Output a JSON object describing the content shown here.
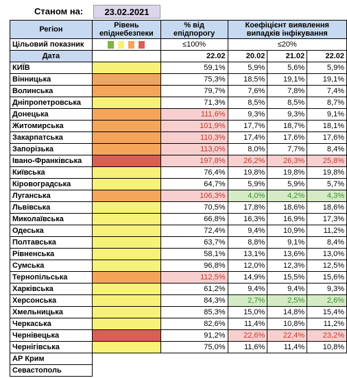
{
  "as_of_label": "Станом на:",
  "as_of_date": "23.02.2021",
  "headers": {
    "region": "Регіон",
    "risk_level": "Рівень епіднебезпеки",
    "bed_load": "% від епідпорогу",
    "detection": "Коефіцієнт виявлення випадків інфікування"
  },
  "target": {
    "label": "Цільовий показник",
    "bed_load": "≤100%",
    "detection": "≤20%",
    "swatch_colors": [
      "#7cb342",
      "#f6f277",
      "#f5a55a",
      "#d95f55"
    ]
  },
  "date_row": {
    "label": "Дата",
    "bed_load_date": "22.02",
    "dates": [
      "20.02",
      "21.02",
      "22.02"
    ]
  },
  "colors": {
    "green": "#d4ebc5",
    "yellow": "#f6f277",
    "orange": "#f5a55a",
    "red": "#d95f55",
    "pink": "#f7cfcf"
  },
  "rows": [
    {
      "region": "КИЇВ",
      "level": "y",
      "pct": "59,1%",
      "d1": "5,9%",
      "d2": "5,6%",
      "d3": "5,9%"
    },
    {
      "region": "Вінницька",
      "level": "o",
      "pct": "75,3%",
      "d1": "18,5%",
      "d2": "19,1%",
      "d3": "19,1%"
    },
    {
      "region": "Волинська",
      "level": "o",
      "pct": "79,7%",
      "d1": "7,6%",
      "d2": "7,8%",
      "d3": "7,4%"
    },
    {
      "region": "Дніпропетровська",
      "level": "y",
      "pct": "71,3%",
      "d1": "8,5%",
      "d2": "8,5%",
      "d3": "8,7%"
    },
    {
      "region": "Донецька",
      "level": "o",
      "pct": "111,6%",
      "pct_hl": "pink",
      "d1": "9,3%",
      "d2": "9,3%",
      "d3": "9,1%"
    },
    {
      "region": "Житомирська",
      "level": "o",
      "pct": "101,9%",
      "pct_hl": "pink",
      "d1": "17,7%",
      "d2": "18,7%",
      "d3": "18,1%"
    },
    {
      "region": "Закарпатська",
      "level": "o",
      "pct": "110,3%",
      "pct_hl": "pink",
      "d1": "17,4%",
      "d2": "17,6%",
      "d3": "17,6%"
    },
    {
      "region": "Запорізька",
      "level": "o",
      "pct": "113,0%",
      "pct_hl": "pink",
      "d1": "8,0%",
      "d2": "7,7%",
      "d3": "8,4%"
    },
    {
      "region": "Івано-Франківська",
      "level": "r",
      "pct": "197,8%",
      "pct_hl": "pink",
      "d1": "26,2%",
      "d2": "26,3%",
      "d3": "25,8%",
      "d_hl": "red"
    },
    {
      "region": "Київська",
      "level": "y",
      "pct": "76,4%",
      "d1": "19,8%",
      "d2": "19,8%",
      "d3": "19,8%"
    },
    {
      "region": "Кіровоградська",
      "level": "y",
      "pct": "64,7%",
      "d1": "5,9%",
      "d2": "5,9%",
      "d3": "5,7%"
    },
    {
      "region": "Луганська",
      "level": "o",
      "pct": "106,3%",
      "pct_hl": "pink",
      "d1": "4,0%",
      "d2": "4,2%",
      "d3": "4,3%",
      "d_hl": "green"
    },
    {
      "region": "Львівська",
      "level": "y",
      "pct": "70,5%",
      "d1": "17,8%",
      "d2": "18,6%",
      "d3": "18,6%"
    },
    {
      "region": "Миколаївська",
      "level": "y",
      "pct": "66,8%",
      "d1": "16,3%",
      "d2": "16,9%",
      "d3": "17,3%"
    },
    {
      "region": "Одеська",
      "level": "y",
      "pct": "72,4%",
      "d1": "9,4%",
      "d2": "10,9%",
      "d3": "11,2%"
    },
    {
      "region": "Полтавська",
      "level": "y",
      "pct": "63,7%",
      "d1": "8,8%",
      "d2": "9,1%",
      "d3": "8,4%"
    },
    {
      "region": "Рівненська",
      "level": "y",
      "pct": "58,1%",
      "d1": "13,1%",
      "d2": "13,6%",
      "d3": "13,0%"
    },
    {
      "region": "Сумська",
      "level": "y",
      "pct": "96,8%",
      "d1": "12,0%",
      "d2": "12,3%",
      "d3": "12,5%"
    },
    {
      "region": "Тернопільська",
      "level": "o",
      "pct": "112,5%",
      "pct_hl": "pink",
      "d1": "14,9%",
      "d2": "15,5%",
      "d3": "15,6%"
    },
    {
      "region": "Харківська",
      "level": "y",
      "pct": "61,2%",
      "d1": "9,4%",
      "d2": "9,4%",
      "d3": "9,3%"
    },
    {
      "region": "Херсонська",
      "level": "y",
      "pct": "84,3%",
      "d1": "2,7%",
      "d2": "2,5%",
      "d3": "2,6%",
      "d_hl": "green"
    },
    {
      "region": "Хмельницька",
      "level": "y",
      "pct": "85,3%",
      "d1": "15,0%",
      "d2": "14,8%",
      "d3": "15,4%"
    },
    {
      "region": "Черкаська",
      "level": "y",
      "pct": "82,6%",
      "d1": "11,4%",
      "d2": "10,8%",
      "d3": "11,2%"
    },
    {
      "region": "Чернівецька",
      "level": "r",
      "pct": "91,2%",
      "d1": "22,6%",
      "d2": "22,4%",
      "d3": "23,2%",
      "d_hl": "red"
    },
    {
      "region": "Чернігівська",
      "level": "y",
      "pct": "75,0%",
      "d1": "11,6%",
      "d2": "11,4%",
      "d3": "10,8%"
    },
    {
      "region": "АР Крим",
      "level": "",
      "pct": "",
      "d1": "",
      "d2": "",
      "d3": ""
    },
    {
      "region": "Севастополь",
      "level": "",
      "pct": "",
      "d1": "",
      "d2": "",
      "d3": ""
    }
  ]
}
